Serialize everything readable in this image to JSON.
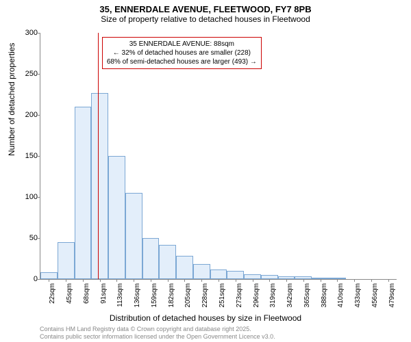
{
  "title": "35, ENNERDALE AVENUE, FLEETWOOD, FY7 8PB",
  "subtitle": "Size of property relative to detached houses in Fleetwood",
  "ylabel": "Number of detached properties",
  "xlabel": "Distribution of detached houses by size in Fleetwood",
  "annotation": {
    "line1": "35 ENNERDALE AVENUE: 88sqm",
    "line2": "← 32% of detached houses are smaller (228)",
    "line3": "68% of semi-detached houses are larger (493) →"
  },
  "footer": {
    "line1": "Contains HM Land Registry data © Crown copyright and database right 2025.",
    "line2": "Contains public sector information licensed under the Open Government Licence v3.0."
  },
  "chart": {
    "type": "histogram",
    "ylim": [
      0,
      300
    ],
    "ytick_step": 50,
    "bar_color": "#e3eefa",
    "bar_border": "#7ba7d4",
    "marker_color": "#cc0000",
    "marker_x_sqm": 88,
    "x_min_sqm": 22,
    "x_step_sqm": 22.86,
    "x_labels": [
      "22sqm",
      "45sqm",
      "68sqm",
      "91sqm",
      "113sqm",
      "136sqm",
      "159sqm",
      "182sqm",
      "205sqm",
      "228sqm",
      "251sqm",
      "273sqm",
      "296sqm",
      "319sqm",
      "342sqm",
      "365sqm",
      "388sqm",
      "410sqm",
      "433sqm",
      "456sqm",
      "479sqm"
    ],
    "values": [
      8,
      45,
      210,
      227,
      150,
      105,
      50,
      42,
      28,
      18,
      12,
      10,
      6,
      5,
      3,
      3,
      2,
      2,
      0,
      0,
      0
    ]
  }
}
